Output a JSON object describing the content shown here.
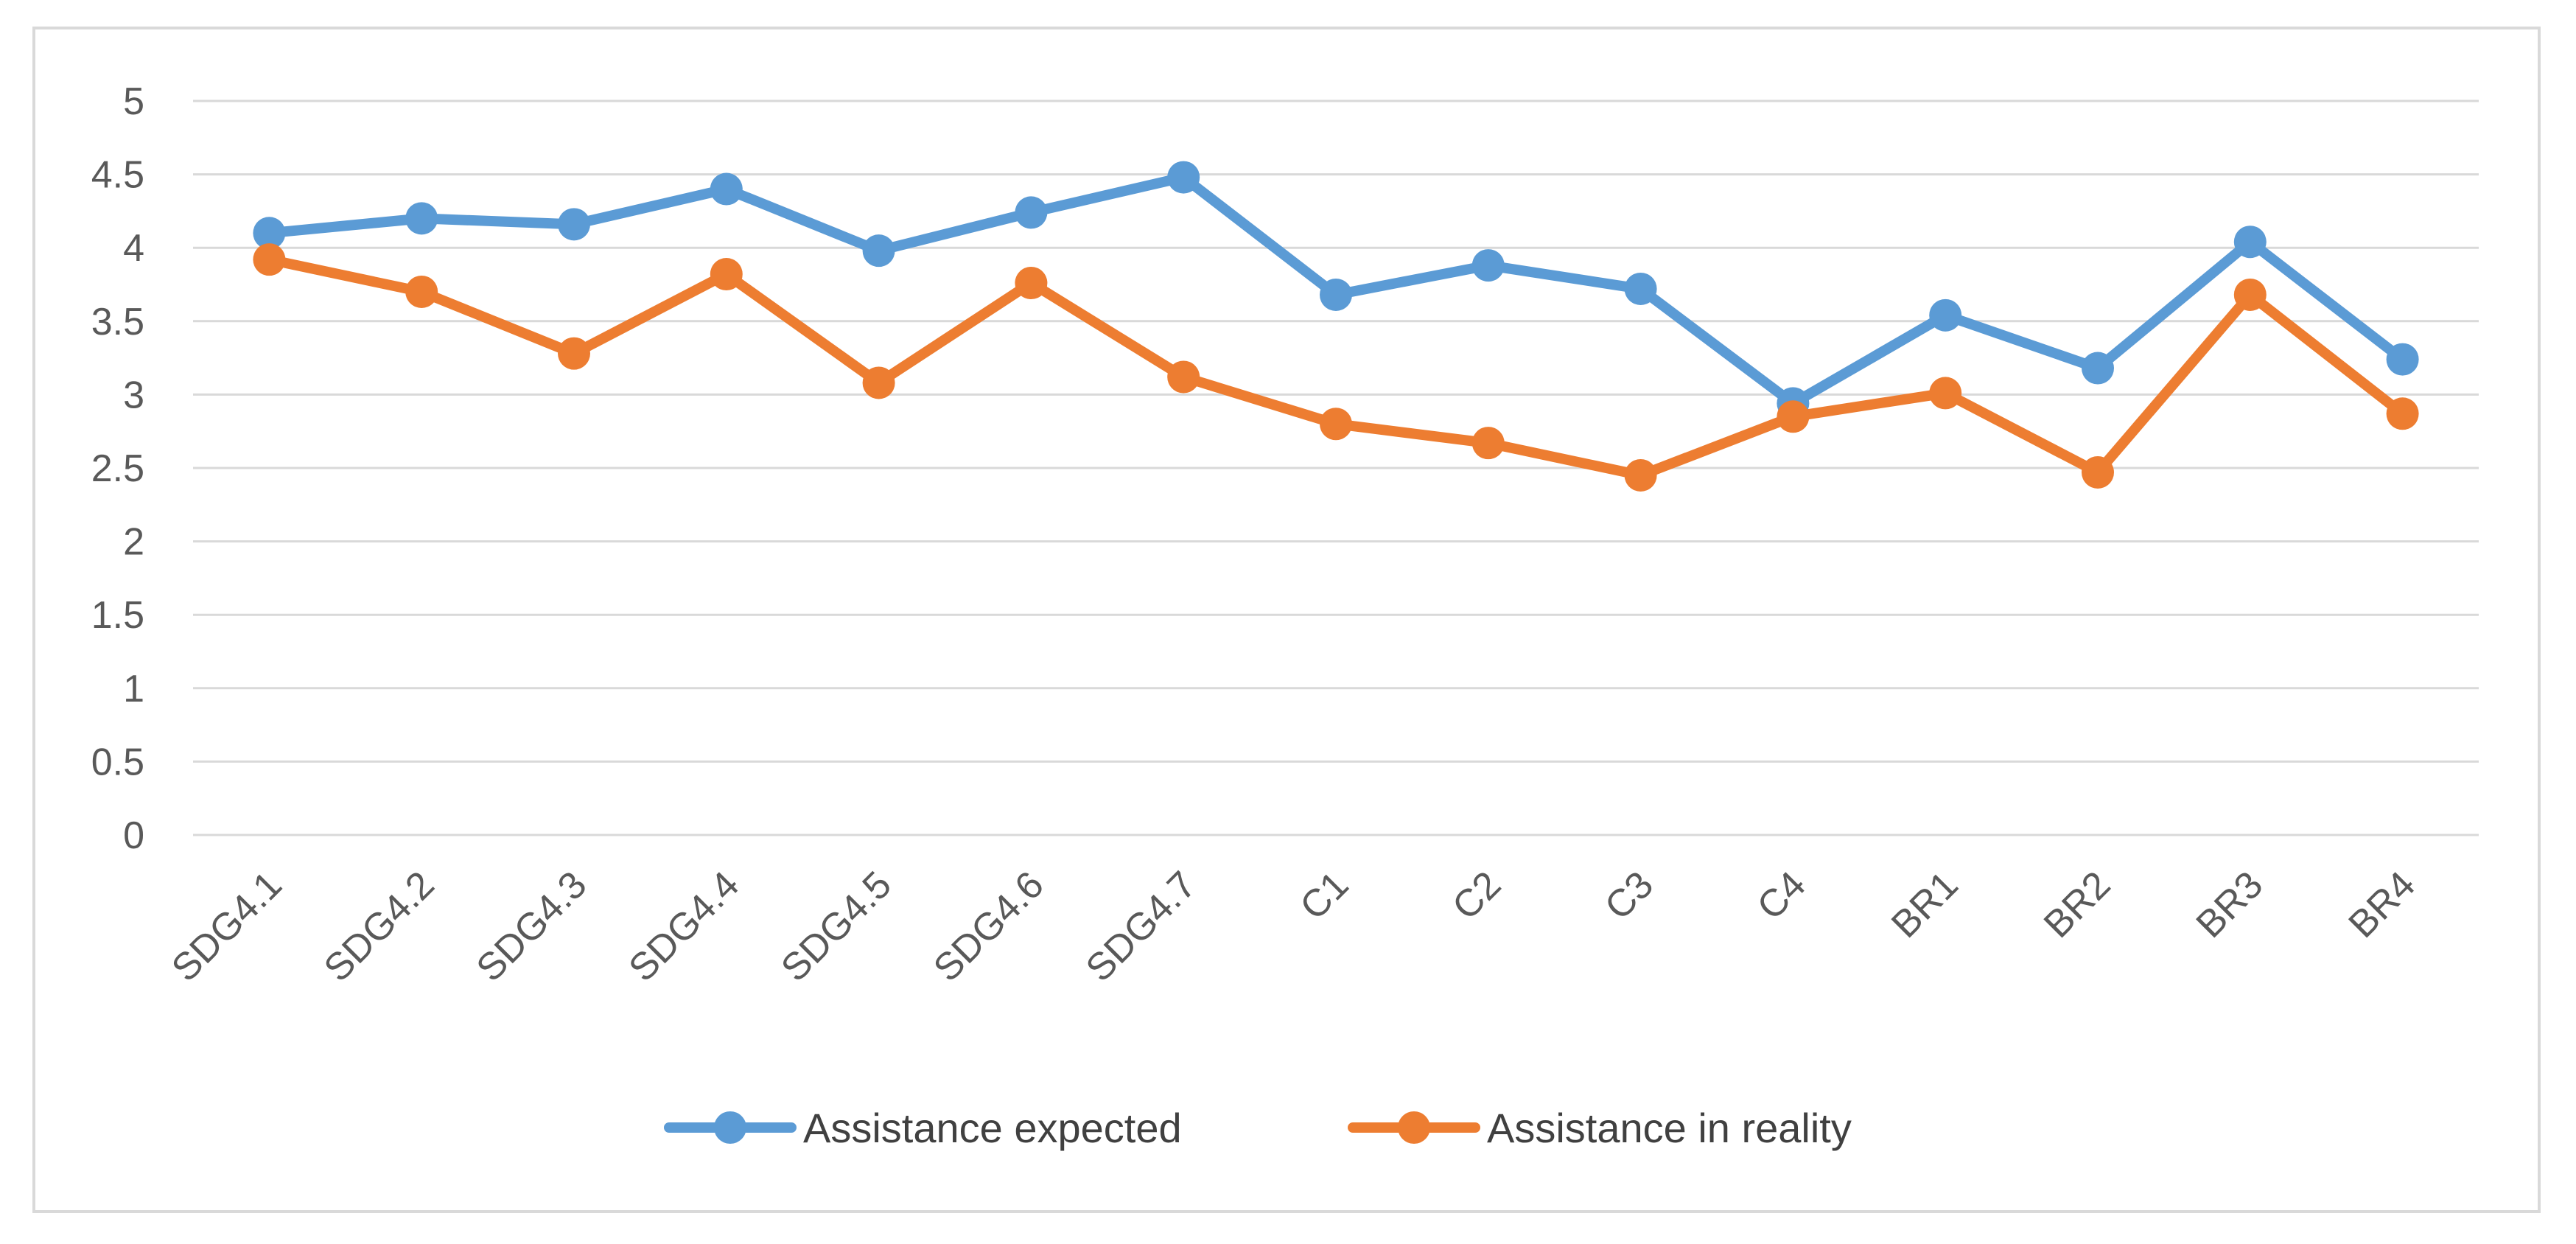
{
  "chart_data": {
    "type": "line",
    "title": "",
    "xlabel": "",
    "ylabel": "",
    "categories": [
      "SDG4.1",
      "SDG4.2",
      "SDG4.3",
      "SDG4.4",
      "SDG4.5",
      "SDG4.6",
      "SDG4.7",
      "C1",
      "C2",
      "C3",
      "C4",
      "BR1",
      "BR2",
      "BR3",
      "BR4"
    ],
    "ylim": [
      0,
      5
    ],
    "yticks": [
      "0",
      "0.5",
      "1",
      "1.5",
      "2",
      "2.5",
      "3",
      "3.5",
      "4",
      "4.5",
      "5"
    ],
    "grid": true,
    "legend_position": "bottom",
    "series": [
      {
        "name": "Assistance expected",
        "color": "#5b9bd5",
        "values": [
          4.1,
          4.2,
          4.16,
          4.4,
          3.98,
          4.24,
          4.48,
          3.68,
          3.88,
          3.72,
          2.94,
          3.54,
          3.18,
          4.04,
          3.24
        ]
      },
      {
        "name": "Assistance in reality",
        "color": "#ed7d31",
        "values": [
          3.92,
          3.7,
          3.28,
          3.82,
          3.08,
          3.76,
          3.12,
          2.8,
          2.67,
          2.45,
          2.85,
          3.01,
          2.47,
          3.68,
          2.87
        ]
      }
    ]
  }
}
